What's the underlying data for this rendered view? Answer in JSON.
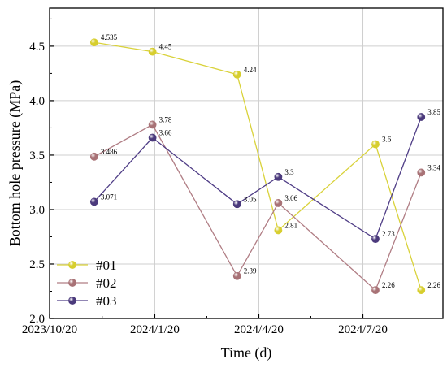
{
  "chart_data": {
    "type": "line",
    "xlabel": "Time (d)",
    "ylabel": "Bottom hole pressure (MPa)",
    "x": [
      "2023-11-28",
      "2024-01-18",
      "2024-04-01",
      "2024-05-07",
      "2024-07-31",
      "2024-09-09"
    ],
    "xlim": [
      "2023-10-20",
      "2024-09-28"
    ],
    "ylim": [
      2.0,
      4.85
    ],
    "x_ticks": [
      "2023/10/20",
      "2024/1/20",
      "2024/4/20",
      "2024/7/20"
    ],
    "x_tick_dates": [
      "2023-10-20",
      "2024-01-20",
      "2024-04-20",
      "2024-07-20"
    ],
    "y_ticks": [
      "2.0",
      "2.5",
      "3.0",
      "3.5",
      "4.0",
      "4.5"
    ],
    "grid": true,
    "legend_position": "bottom-left",
    "series": [
      {
        "name": "#01",
        "values": [
          4.535,
          4.45,
          4.24,
          2.81,
          3.6,
          2.26
        ],
        "labels": [
          "4.535",
          "4.45",
          "4.24",
          "2.81",
          "3.6",
          "2.26"
        ],
        "color": "#d7ce2e",
        "line_color": "#d9d23a"
      },
      {
        "name": "#02",
        "values": [
          3.486,
          3.78,
          2.39,
          3.06,
          2.26,
          3.34
        ],
        "labels": [
          "3.486",
          "3.78",
          "2.39",
          "3.06",
          "2.26",
          "3.34"
        ],
        "color": "#a87276",
        "line_color": "#b07d84"
      },
      {
        "name": "#03",
        "values": [
          3.071,
          3.66,
          3.05,
          3.3,
          2.73,
          3.85
        ],
        "labels": [
          "3.071",
          "3.66",
          "3.05",
          "3.3",
          "2.73",
          "3.85"
        ],
        "color": "#4b3a7c",
        "line_color": "#4f3d86"
      }
    ]
  }
}
